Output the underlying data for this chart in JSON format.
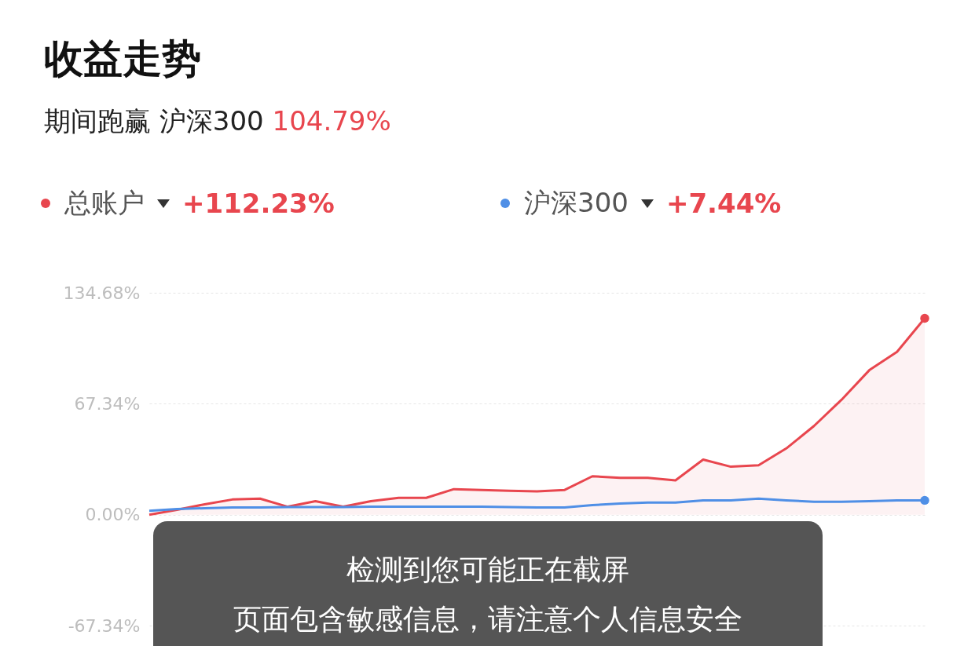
{
  "chart_data": {
    "type": "line",
    "title": "收益走势",
    "subtitle": "期间跑赢 沪深300 104.79%",
    "categories": [
      null,
      null,
      null,
      null,
      null,
      null,
      null,
      null,
      null,
      null,
      null,
      null,
      null,
      null,
      null,
      null,
      null,
      null,
      null,
      null,
      null,
      null,
      null,
      null,
      null,
      null,
      null,
      null,
      null
    ],
    "series": [
      {
        "name": "总账户",
        "type": "area",
        "color": "#e8464e",
        "values": [
          0,
          2.9,
          6.3,
          9.2,
          9.7,
          4.8,
          8.2,
          4.8,
          8.2,
          10.2,
          10.2,
          15.5,
          15,
          14.5,
          14.1,
          15,
          23.3,
          22.3,
          22.3,
          20.8,
          33.4,
          29.1,
          30,
          40.2,
          53.8,
          69.8,
          87.7,
          98.8,
          119.2
        ]
      },
      {
        "name": "沪深300",
        "type": "line",
        "color": "#4f8fe6",
        "values": [
          2.4,
          3.4,
          3.9,
          4.4,
          4.4,
          4.6,
          4.6,
          4.6,
          4.8,
          4.8,
          4.8,
          4.8,
          4.8,
          4.6,
          4.4,
          4.4,
          5.8,
          6.8,
          7.3,
          7.3,
          8.7,
          8.7,
          9.7,
          8.7,
          7.8,
          7.8,
          8.2,
          8.7,
          8.7
        ]
      }
    ],
    "ylim": [
      -67.34,
      134.68
    ],
    "yticks": [
      {
        "value": -67.34,
        "label": "-67.34%"
      },
      {
        "value": 0,
        "label": "0.00%"
      },
      {
        "value": 67.34,
        "label": "67.34%"
      },
      {
        "value": 134.68,
        "label": "134.68%"
      }
    ],
    "grid": "y",
    "legend": "top",
    "annotations": [
      "+112.23%",
      "+7.44%",
      "检测到您可能正在截屏",
      "页面包含敏感信息，请注意个人信息安全"
    ]
  }
}
